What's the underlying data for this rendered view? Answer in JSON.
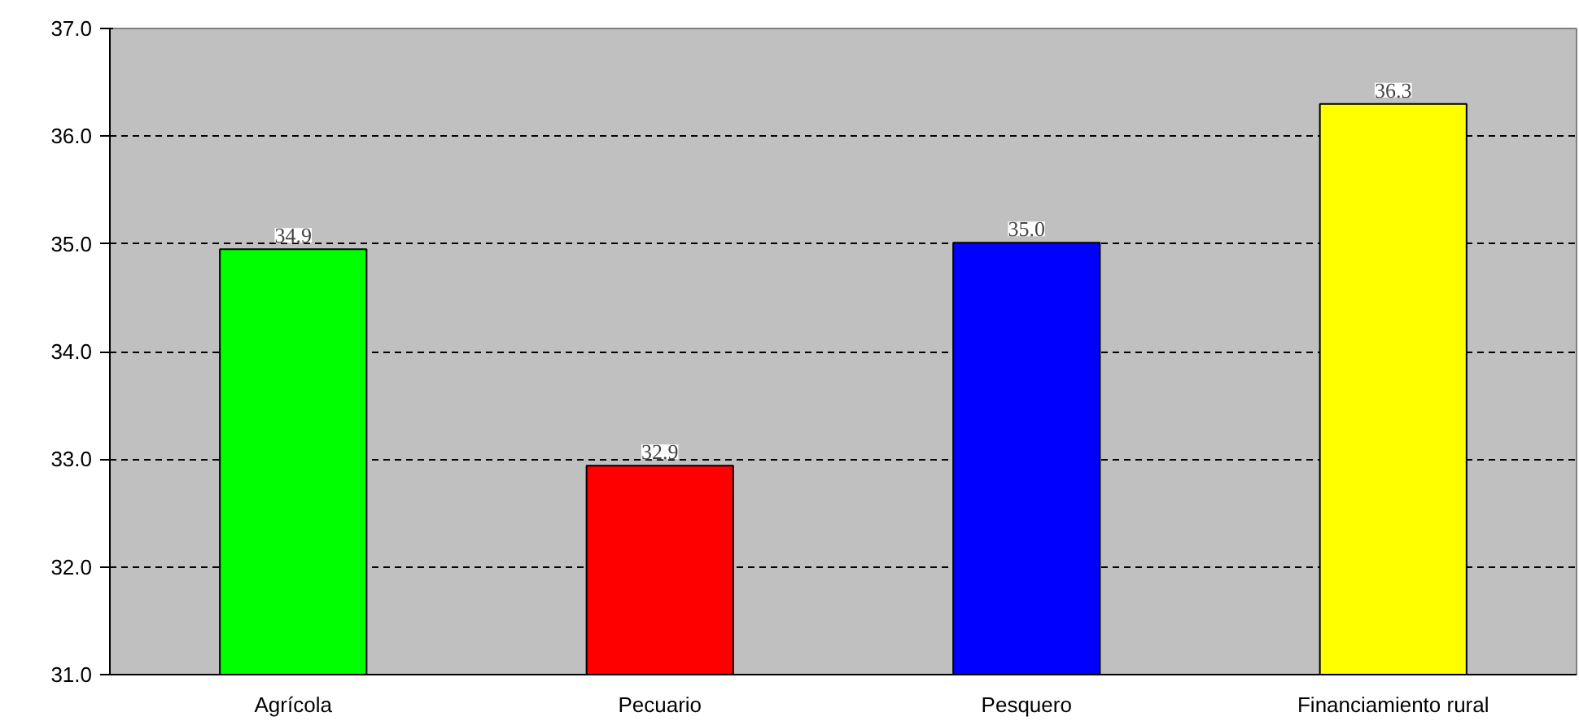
{
  "chart_data": {
    "type": "bar",
    "categories": [
      "Agrícola",
      "Pecuario",
      "Pesquero",
      "Financiamiento rural"
    ],
    "values": [
      34.95,
      32.94,
      35.01,
      36.3
    ],
    "value_labels": [
      "34.9",
      "32.9",
      "35.0",
      "36.3"
    ],
    "colors": [
      "#00ff00",
      "#ff0000",
      "#0000ff",
      "#ffff00"
    ],
    "ylim": [
      31,
      37
    ],
    "yticks": [
      {
        "value": 31,
        "label": "31.0"
      },
      {
        "value": 32,
        "label": "32.0"
      },
      {
        "value": 33,
        "label": "33.0"
      },
      {
        "value": 34,
        "label": "34.0"
      },
      {
        "value": 35,
        "label": "35.0"
      },
      {
        "value": 36,
        "label": "36.0"
      },
      {
        "value": 37,
        "label": "37.0"
      }
    ],
    "grid": "y"
  }
}
